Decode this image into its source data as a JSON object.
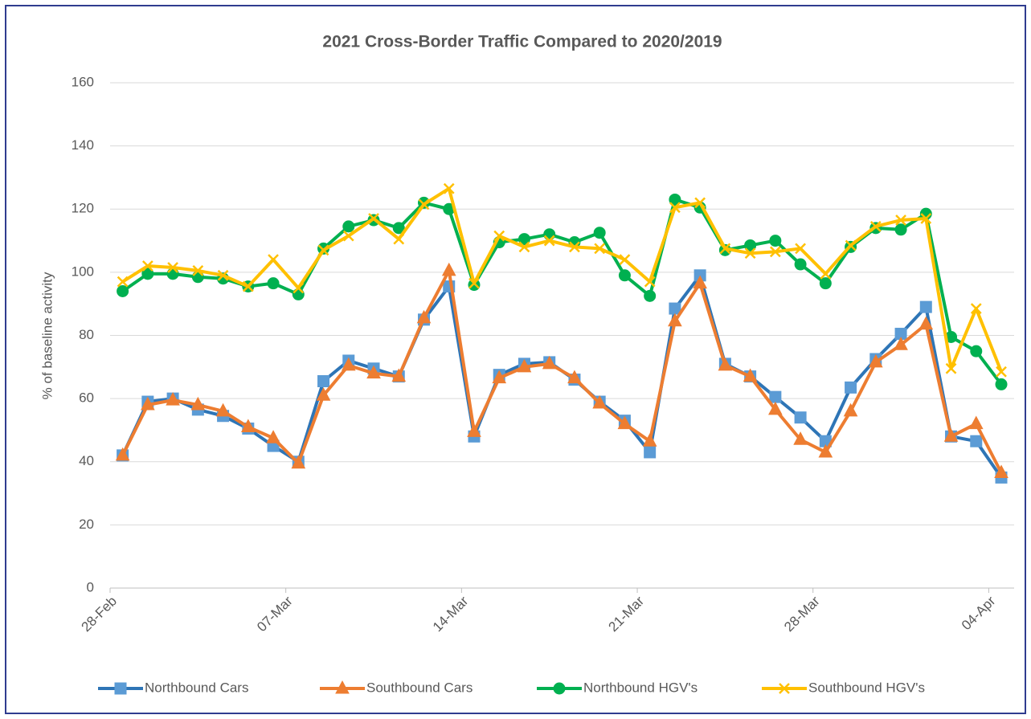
{
  "chart_data": {
    "type": "line",
    "title": "2021 Cross-Border Traffic Compared to 2020/2019",
    "y_label": "% of baseline activity",
    "categories": [
      "28-Feb",
      null,
      null,
      null,
      null,
      null,
      null,
      "07-Mar",
      null,
      null,
      null,
      null,
      null,
      null,
      "14-Mar",
      null,
      null,
      null,
      null,
      null,
      null,
      "21-Mar",
      null,
      null,
      null,
      null,
      null,
      null,
      "28-Mar",
      null,
      null,
      null,
      null,
      null,
      null,
      "04-Apr"
    ],
    "ylim": [
      0,
      160
    ],
    "yticks": [
      0,
      20,
      40,
      60,
      80,
      100,
      120,
      140,
      160
    ],
    "grid": true,
    "legend": "bottom",
    "series": [
      {
        "name": "Northbound Cars",
        "color": "#2e75b6",
        "marker_color": "#5b9bd5",
        "marker": "square",
        "values": [
          42,
          59,
          60,
          56.5,
          54.5,
          50.5,
          45,
          40,
          65.5,
          72,
          69.5,
          67,
          85,
          95.5,
          48,
          67.5,
          71,
          71.5,
          66,
          59,
          53,
          43,
          88.5,
          99,
          71,
          67,
          60.5,
          54,
          46.5,
          63.5,
          72.5,
          80.5,
          89,
          48,
          46.5,
          35
        ]
      },
      {
        "name": "Southbound Cars",
        "color": "#ed7d31",
        "marker_color": "#ed7d31",
        "marker": "triangle",
        "values": [
          42,
          58,
          59.5,
          58,
          56,
          51,
          47.5,
          39.5,
          61,
          70.5,
          68,
          67,
          85.5,
          100.5,
          49.5,
          66.5,
          70,
          71,
          66.5,
          58.5,
          52,
          46.5,
          84.5,
          96.5,
          70.5,
          67,
          56.5,
          47,
          43,
          56,
          71.5,
          77,
          83.5,
          48,
          52,
          36.5
        ]
      },
      {
        "name": "Northbound HGV's",
        "color": "#00b050",
        "marker_color": "#00b050",
        "marker": "circle",
        "values": [
          94,
          99.5,
          99.5,
          98.5,
          98,
          95.5,
          96.5,
          93,
          107.5,
          114.5,
          116.5,
          114,
          122,
          120,
          96,
          109.5,
          110.5,
          112,
          109.5,
          112.5,
          99,
          92.5,
          123,
          120.5,
          107,
          108.5,
          110,
          102.5,
          96.5,
          108,
          114,
          113.5,
          118.5,
          79.5,
          75,
          64.5
        ]
      },
      {
        "name": "Southbound HGV's",
        "color": "#ffc000",
        "marker_color": "#ffc000",
        "marker": "x",
        "values": [
          97,
          102,
          101.5,
          100.5,
          99,
          95.5,
          104,
          95,
          107,
          111.5,
          117,
          110.5,
          121.5,
          126.5,
          96.5,
          111.5,
          108,
          110,
          108,
          107.5,
          104,
          97,
          120.5,
          122,
          107.5,
          106,
          106.5,
          107.5,
          99.5,
          108.5,
          114.5,
          116.5,
          117,
          69.5,
          88.5,
          68.5
        ]
      }
    ]
  }
}
